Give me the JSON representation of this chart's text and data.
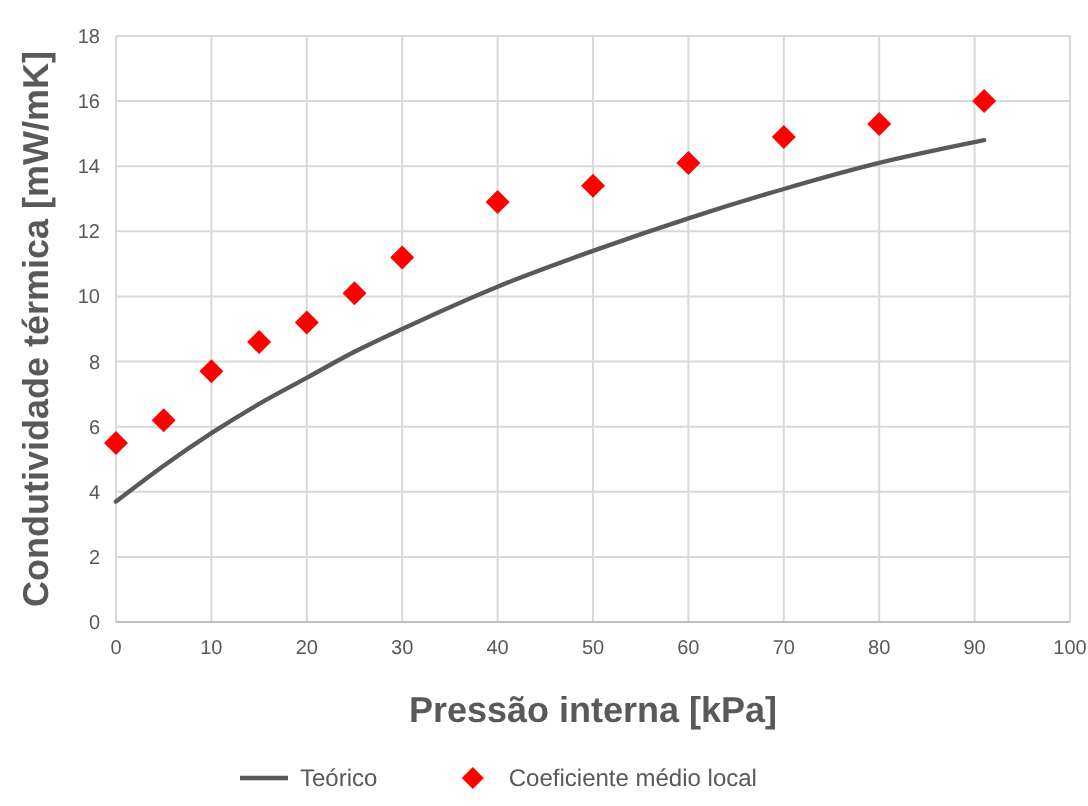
{
  "chart_data": {
    "type": "scatter",
    "xlabel": "Pressão interna [kPa]",
    "ylabel": "Condutividade térmica [mW/mK]",
    "xlim": [
      0,
      100
    ],
    "xticks": [
      0,
      10,
      20,
      30,
      40,
      50,
      60,
      70,
      80,
      90,
      100
    ],
    "ylim": [
      0,
      18
    ],
    "yticks": [
      0,
      2,
      4,
      6,
      8,
      10,
      12,
      14,
      16,
      18
    ],
    "grid": true,
    "legend": "bottom",
    "series": [
      {
        "name": "Teórico",
        "type": "line",
        "color": "#595959",
        "marker": "none",
        "line_style": "solid",
        "x": [
          0,
          5,
          10,
          15,
          20,
          25,
          30,
          40,
          50,
          60,
          70,
          80,
          91
        ],
        "values": [
          3.7,
          4.8,
          5.8,
          6.7,
          7.5,
          8.3,
          9.0,
          10.3,
          11.4,
          12.4,
          13.3,
          14.1,
          14.8
        ]
      },
      {
        "name": "Coeficiente médio local",
        "color": "#ff0000",
        "marker": "diamond",
        "x": [
          0,
          5,
          10,
          15,
          20,
          25,
          30,
          40,
          50,
          60,
          70,
          80,
          91
        ],
        "values": [
          5.5,
          6.2,
          7.7,
          8.6,
          9.2,
          10.1,
          11.2,
          12.9,
          13.4,
          14.1,
          14.9,
          15.3,
          16.0
        ]
      }
    ]
  }
}
